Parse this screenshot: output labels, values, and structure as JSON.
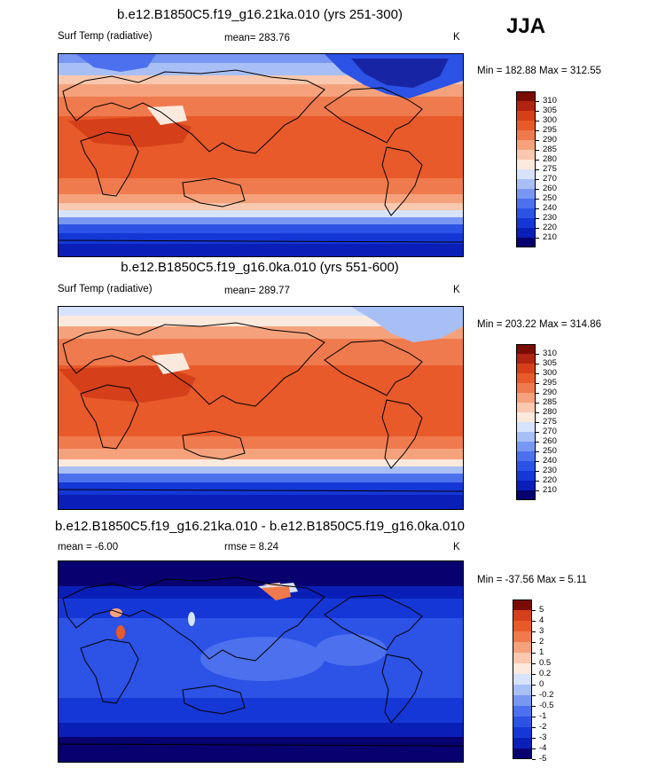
{
  "season": "JJA",
  "palette_abs": [
    "#08006e",
    "#0a1fb8",
    "#1537d6",
    "#2c52e6",
    "#4d70ee",
    "#7797f2",
    "#a8bff6",
    "#d7e3fb",
    "#fbe9dd",
    "#f9c8ae",
    "#f5a27c",
    "#ef7a4e",
    "#e85a2a",
    "#d5401a",
    "#b02412",
    "#7a0c05"
  ],
  "palette_diff": [
    "#08006e",
    "#0a1fb8",
    "#1537d6",
    "#2c52e6",
    "#4d70ee",
    "#7797f2",
    "#a8bff6",
    "#d7e3fb",
    "#fbe9dd",
    "#f9c8ae",
    "#f5a27c",
    "#ef7a4e",
    "#e85a2a",
    "#d5401a",
    "#7a0c05"
  ],
  "panels": [
    {
      "title": "b.e12.B1850C5.f19_g16.21ka.010 (yrs 251-300)",
      "left_label": "Surf Temp (radiative)",
      "center_label": "mean= 283.76",
      "units": "K",
      "minmax": "Min = 182.88 Max = 312.55",
      "legend_labels": [
        "310",
        "305",
        "300",
        "295",
        "290",
        "285",
        "280",
        "275",
        "270",
        "260",
        "250",
        "240",
        "230",
        "220",
        "210"
      ]
    },
    {
      "title": "b.e12.B1850C5.f19_g16.0ka.010 (yrs 551-600)",
      "left_label": "Surf Temp (radiative)",
      "center_label": "mean= 289.77",
      "units": "K",
      "minmax": "Min = 203.22 Max = 314.86",
      "legend_labels": [
        "310",
        "305",
        "300",
        "295",
        "290",
        "285",
        "280",
        "275",
        "270",
        "260",
        "250",
        "240",
        "230",
        "220",
        "210"
      ]
    },
    {
      "title": "b.e12.B1850C5.f19_g16.21ka.010 - b.e12.B1850C5.f19_g16.0ka.010",
      "left_label": "mean =  -6.00",
      "center_label": "rmse =   8.24",
      "units": "K",
      "minmax": "Min = -37.56 Max =   5.11",
      "legend_labels": [
        "5",
        "4",
        "3",
        "2",
        "1",
        "0.5",
        "0.2",
        "0",
        "-0.2",
        "-0.5",
        "-1",
        "-2",
        "-3",
        "-4",
        "-5"
      ]
    }
  ]
}
